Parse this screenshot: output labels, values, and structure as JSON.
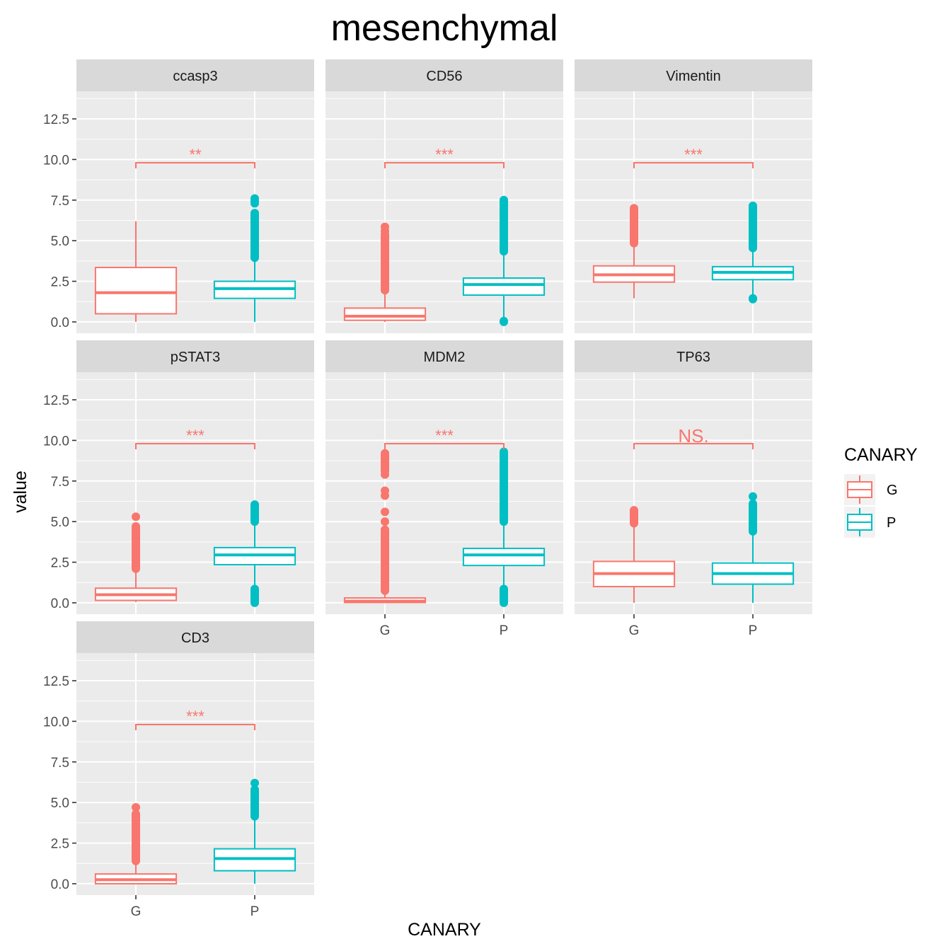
{
  "chart_data": {
    "type": "box",
    "title": "mesenchymal",
    "xlabel": "CANARY",
    "ylabel": "value",
    "ylim": [
      -0.7,
      14.2
    ],
    "yticks": [
      "0.0",
      "2.5",
      "5.0",
      "7.5",
      "10.0",
      "12.5"
    ],
    "ytick_values": [
      0,
      2.5,
      5,
      7.5,
      10,
      12.5
    ],
    "categories": [
      "G",
      "P"
    ],
    "grid": true,
    "legend": {
      "title": "CANARY",
      "placement": "right",
      "entries": [
        {
          "label": "G",
          "color": "#F8766D"
        },
        {
          "label": "P",
          "color": "#00BFC4"
        }
      ]
    },
    "bracket_y": 9.8,
    "facets": [
      {
        "name": "ccasp3",
        "sig": "**",
        "boxes": [
          {
            "group": "G",
            "whisker_low": 0.0,
            "q1": 0.5,
            "median": 1.8,
            "q3": 3.35,
            "whisker_high": 6.2,
            "outliers_low": [],
            "outliers_high": []
          },
          {
            "group": "P",
            "whisker_low": 0.0,
            "q1": 1.45,
            "median": 2.05,
            "q3": 2.5,
            "whisker_high": 3.9,
            "outliers_low": [],
            "outliers_high": [
              [
                3.95,
                6.7
              ],
              7.3,
              7.45,
              7.6
            ]
          }
        ]
      },
      {
        "name": "CD56",
        "sig": "***",
        "boxes": [
          {
            "group": "G",
            "whisker_low": 0.0,
            "q1": 0.1,
            "median": 0.35,
            "q3": 0.85,
            "whisker_high": 1.9,
            "outliers_low": [],
            "outliers_high": [
              [
                1.95,
                5.4
              ],
              5.6,
              5.85
            ]
          },
          {
            "group": "P",
            "whisker_low": 0.0,
            "q1": 1.65,
            "median": 2.3,
            "q3": 2.7,
            "whisker_high": 4.3,
            "outliers_low": [
              0.0,
              0.05
            ],
            "outliers_high": [
              [
                4.35,
                7.5
              ]
            ]
          }
        ]
      },
      {
        "name": "Vimentin",
        "sig": "***",
        "boxes": [
          {
            "group": "G",
            "whisker_low": 1.45,
            "q1": 2.45,
            "median": 2.9,
            "q3": 3.45,
            "whisker_high": 4.8,
            "outliers_low": [],
            "outliers_high": [
              [
                4.85,
                7.0
              ]
            ]
          },
          {
            "group": "P",
            "whisker_low": 1.5,
            "q1": 2.6,
            "median": 3.05,
            "q3": 3.4,
            "whisker_high": 4.5,
            "outliers_low": [
              1.4,
              1.45
            ],
            "outliers_high": [
              [
                4.55,
                7.15
              ]
            ]
          }
        ]
      },
      {
        "name": "pSTAT3",
        "sig": "***",
        "boxes": [
          {
            "group": "G",
            "whisker_low": 0.05,
            "q1": 0.15,
            "median": 0.5,
            "q3": 0.9,
            "whisker_high": 2.1,
            "outliers_low": [],
            "outliers_high": [
              [
                2.1,
                4.7
              ],
              5.3
            ]
          },
          {
            "group": "P",
            "whisker_low": 0.9,
            "q1": 2.35,
            "median": 2.95,
            "q3": 3.4,
            "whisker_high": 4.95,
            "outliers_low": [
              [
                0.0,
                0.85
              ]
            ],
            "outliers_high": [
              [
                5.0,
                6.05
              ]
            ]
          }
        ]
      },
      {
        "name": "MDM2",
        "sig": "***",
        "boxes": [
          {
            "group": "G",
            "whisker_low": 0.0,
            "q1": 0.02,
            "median": 0.1,
            "q3": 0.3,
            "whisker_high": 0.7,
            "outliers_low": [],
            "outliers_high": [
              [
                0.75,
                4.5
              ],
              5.0,
              5.6,
              6.6,
              6.9,
              7.9,
              [
                8.1,
                9.2
              ]
            ]
          },
          {
            "group": "P",
            "whisker_low": 0.9,
            "q1": 2.3,
            "median": 2.95,
            "q3": 3.35,
            "whisker_high": 4.95,
            "outliers_low": [
              [
                0.0,
                0.85
              ]
            ],
            "outliers_high": [
              [
                5.0,
                9.3
              ]
            ]
          }
        ]
      },
      {
        "name": "TP63",
        "sig": "NS.",
        "boxes": [
          {
            "group": "G",
            "whisker_low": 0.0,
            "q1": 1.0,
            "median": 1.8,
            "q3": 2.55,
            "whisker_high": 4.85,
            "outliers_low": [],
            "outliers_high": [
              [
                4.9,
                5.7
              ]
            ]
          },
          {
            "group": "P",
            "whisker_low": 0.0,
            "q1": 1.15,
            "median": 1.8,
            "q3": 2.45,
            "whisker_high": 4.35,
            "outliers_low": [],
            "outliers_high": [
              [
                4.4,
                6.1
              ],
              6.55
            ]
          }
        ]
      },
      {
        "name": "CD3",
        "sig": "***",
        "boxes": [
          {
            "group": "G",
            "whisker_low": 0.0,
            "q1": 0.0,
            "median": 0.25,
            "q3": 0.6,
            "whisker_high": 1.35,
            "outliers_low": [],
            "outliers_high": [
              [
                1.4,
                4.3
              ],
              4.7
            ]
          },
          {
            "group": "P",
            "whisker_low": 0.0,
            "q1": 0.8,
            "median": 1.55,
            "q3": 2.15,
            "whisker_high": 4.1,
            "outliers_low": [],
            "outliers_high": [
              [
                4.15,
                5.8
              ],
              6.2
            ]
          }
        ]
      }
    ]
  }
}
